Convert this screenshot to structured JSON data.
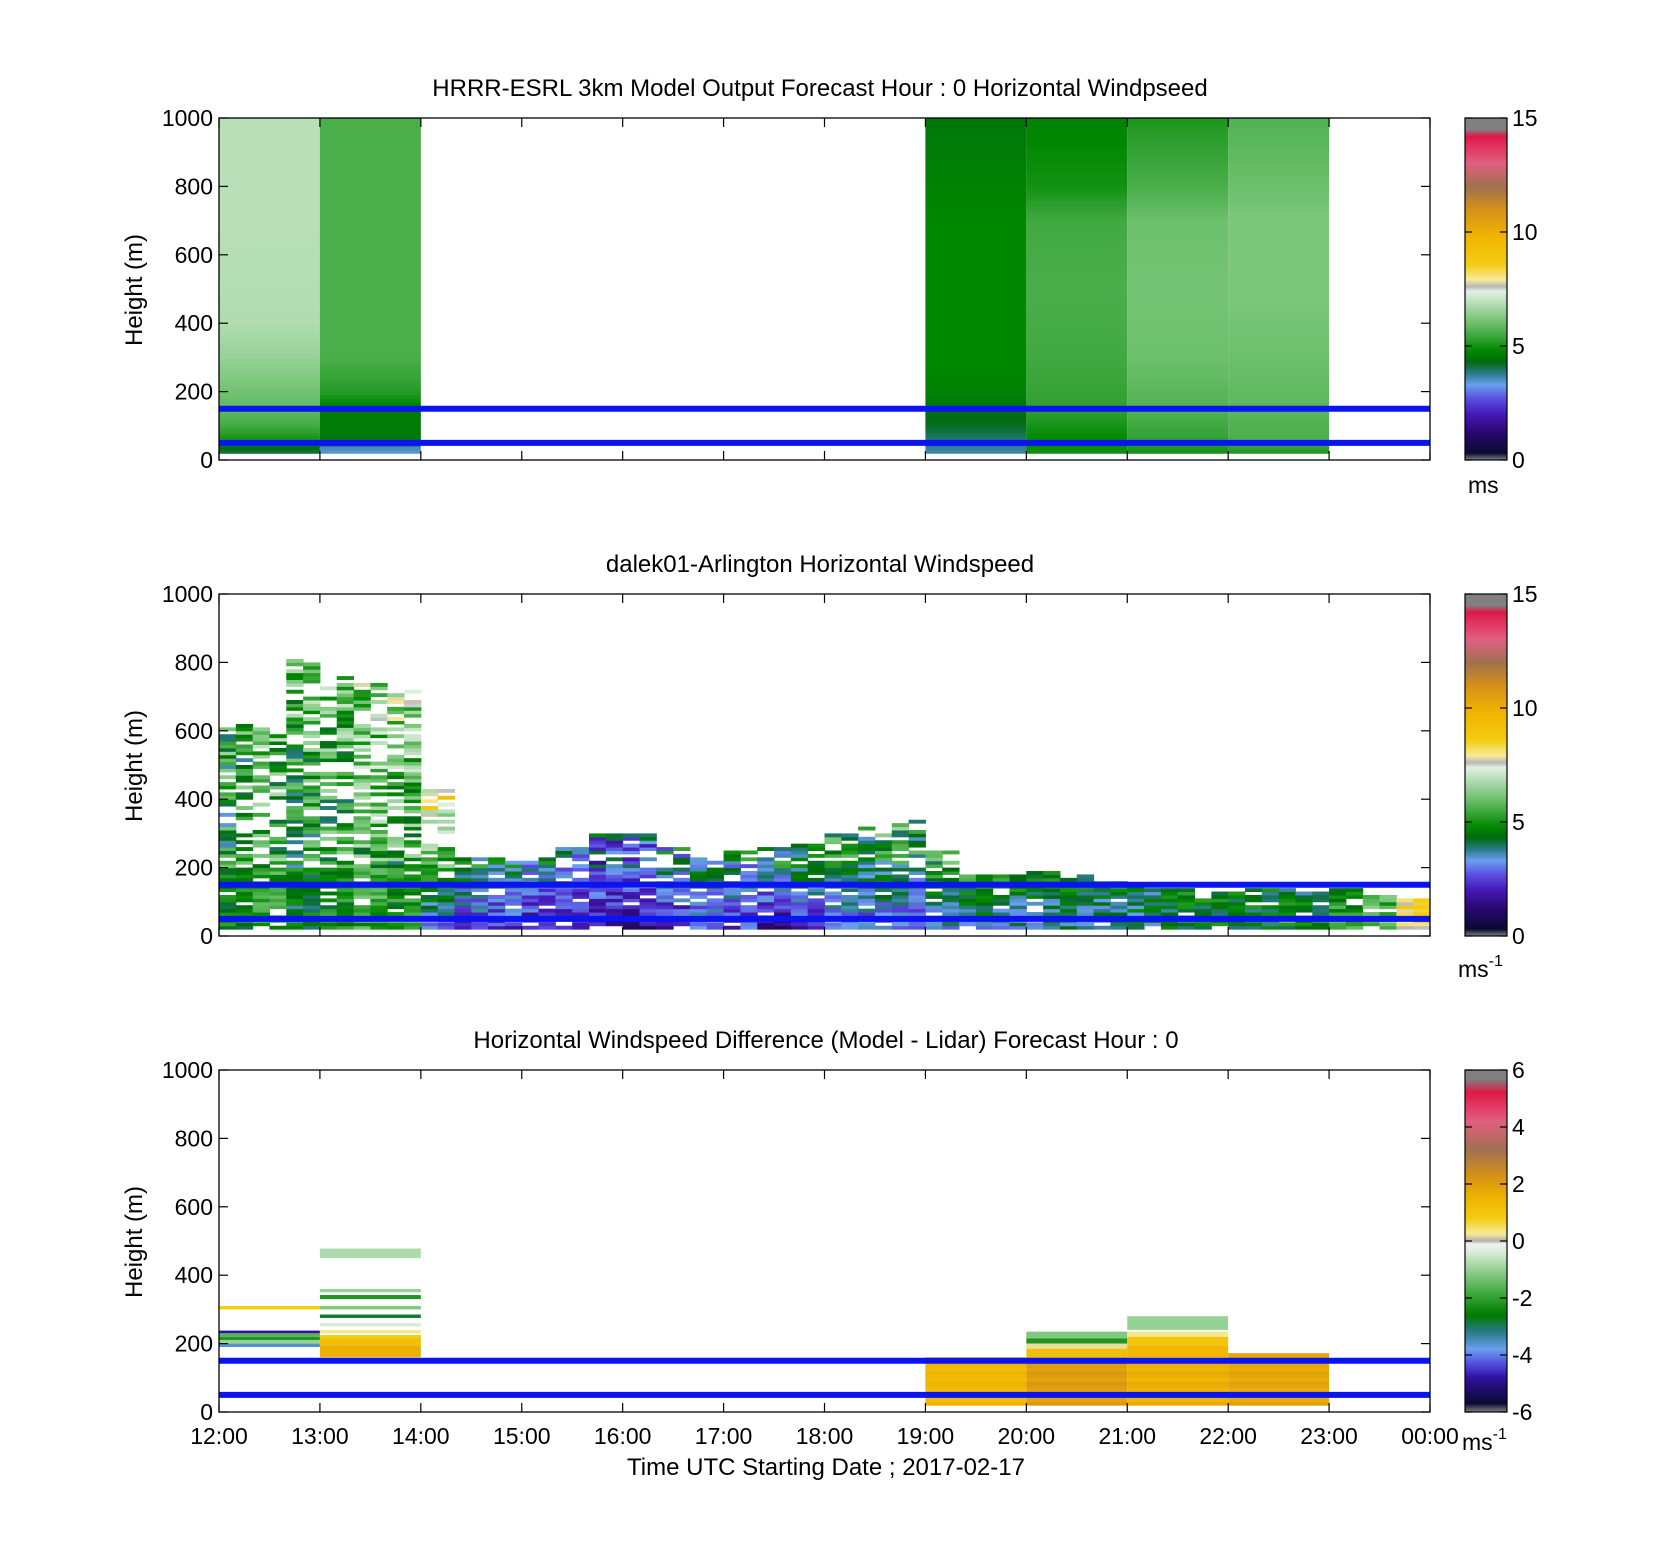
{
  "chart_data": [
    {
      "type": "heatmap",
      "title": "HRRR-ESRL 3km Model Output   Forecast Hour : 0 Horizontal Windpseed",
      "ylabel": "Height (m)",
      "ylim": [
        0,
        1000
      ],
      "yticks": [
        "0",
        "200",
        "400",
        "600",
        "800",
        "1000"
      ],
      "xlim": [
        "12:00",
        "00:00"
      ],
      "colorbar": {
        "min": 0,
        "max": 15,
        "ticks": [
          "0",
          "5",
          "10",
          "15"
        ],
        "unit": "ms",
        "colormap": "windspeed"
      },
      "reference_lines_m": [
        50,
        150
      ],
      "reference_line_color": "#0a14f0",
      "columns": [
        {
          "start": "12:00",
          "end": "13:00",
          "bottom_m": 20,
          "top_m": 1000,
          "profile": [
            [
              20,
              4.0
            ],
            [
              60,
              5.0
            ],
            [
              110,
              5.6
            ],
            [
              160,
              5.9
            ],
            [
              230,
              6.2
            ],
            [
              300,
              6.5
            ],
            [
              400,
              6.8
            ],
            [
              700,
              6.9
            ],
            [
              1000,
              6.9
            ]
          ]
        },
        {
          "start": "13:00",
          "end": "14:00",
          "bottom_m": 20,
          "top_m": 1000,
          "profile": [
            [
              20,
              3.4
            ],
            [
              40,
              3.6
            ],
            [
              60,
              4.5
            ],
            [
              80,
              4.6
            ],
            [
              150,
              4.6
            ],
            [
              200,
              5.2
            ],
            [
              300,
              5.6
            ],
            [
              1000,
              5.6
            ]
          ]
        },
        {
          "start": "19:00",
          "end": "20:00",
          "bottom_m": 20,
          "top_m": 1000,
          "profile": [
            [
              20,
              3.6
            ],
            [
              60,
              3.9
            ],
            [
              100,
              4.2
            ],
            [
              140,
              4.4
            ],
            [
              200,
              4.7
            ],
            [
              300,
              4.8
            ],
            [
              500,
              4.8
            ],
            [
              700,
              4.8
            ],
            [
              900,
              4.6
            ],
            [
              1000,
              4.5
            ]
          ]
        },
        {
          "start": "20:00",
          "end": "21:00",
          "bottom_m": 20,
          "top_m": 1000,
          "profile": [
            [
              20,
              5.0
            ],
            [
              60,
              4.8
            ],
            [
              150,
              5.3
            ],
            [
              300,
              5.5
            ],
            [
              500,
              5.6
            ],
            [
              700,
              5.5
            ],
            [
              800,
              5.0
            ],
            [
              1000,
              4.7
            ]
          ]
        },
        {
          "start": "21:00",
          "end": "22:00",
          "bottom_m": 20,
          "top_m": 1000,
          "profile": [
            [
              20,
              5.0
            ],
            [
              60,
              5.3
            ],
            [
              150,
              5.7
            ],
            [
              300,
              6.0
            ],
            [
              500,
              6.1
            ],
            [
              700,
              6.0
            ],
            [
              800,
              5.6
            ],
            [
              1000,
              5.1
            ]
          ]
        },
        {
          "start": "22:00",
          "end": "23:00",
          "bottom_m": 20,
          "top_m": 1000,
          "profile": [
            [
              20,
              5.1
            ],
            [
              60,
              5.6
            ],
            [
              150,
              5.8
            ],
            [
              300,
              6.0
            ],
            [
              500,
              6.2
            ],
            [
              700,
              6.2
            ],
            [
              800,
              6.0
            ],
            [
              1000,
              5.7
            ]
          ]
        }
      ]
    },
    {
      "type": "heatmap",
      "title": "dalek01-Arlington  Horizontal Windspeed",
      "ylabel": "Height (m)",
      "ylim": [
        0,
        1000
      ],
      "yticks": [
        "0",
        "200",
        "400",
        "600",
        "800",
        "1000"
      ],
      "xlim": [
        "12:00",
        "00:00"
      ],
      "colorbar": {
        "min": 0,
        "max": 15,
        "ticks": [
          "0",
          "5",
          "10",
          "15"
        ],
        "unit": "ms",
        "unit_sup": "-1",
        "colormap": "windspeed"
      },
      "reference_lines_m": [
        50,
        150
      ],
      "reference_line_color": "#0a14f0",
      "sample_interval_min": 10,
      "max_height_m": [
        620,
        610,
        820,
        760,
        740,
        720,
        430,
        230,
        230,
        240,
        260,
        310,
        300,
        260,
        230,
        250,
        260,
        270,
        300,
        320,
        340,
        250,
        180,
        180,
        190,
        180,
        160,
        150,
        140,
        130,
        140,
        140,
        130,
        140,
        120,
        110
      ],
      "surface_speed_ms": [
        4.5,
        5.0,
        4.2,
        4.8,
        5.3,
        4.7,
        3.0,
        2.2,
        2.1,
        2.0,
        1.8,
        1.9,
        1.6,
        2.1,
        2.6,
        2.4,
        1.5,
        2.0,
        2.6,
        2.8,
        2.5,
        3.2,
        3.6,
        3.4,
        3.5,
        3.7,
        3.5,
        3.9,
        4.2,
        4.5,
        4.3,
        4.4,
        4.9,
        5.3,
        6.0,
        8.0
      ],
      "aloft_speed_ms": [
        5.2,
        5.8,
        6.0,
        5.9,
        6.4,
        6.7,
        8.4,
        5.0,
        4.6,
        4.0,
        3.6,
        3.5,
        3.8,
        4.1,
        4.4,
        4.3,
        4.8,
        5.1,
        5.3,
        5.2,
        5.5,
        5.6,
        5.2,
        5.0,
        4.8,
        4.6,
        4.4,
        4.2,
        4.8,
        4.6,
        4.4,
        4.5,
        4.2,
        4.8,
        5.4,
        8.5
      ]
    },
    {
      "type": "heatmap",
      "title": "Horizontal Windspeed Difference (Model - Lidar) Forecast Hour : 0",
      "ylabel": "Height (m)",
      "xlabel": "Time UTC  Starting Date ; 2017-02-17",
      "ylim": [
        0,
        1000
      ],
      "yticks": [
        "0",
        "200",
        "400",
        "600",
        "800",
        "1000"
      ],
      "xticks": [
        "12:00",
        "13:00",
        "14:00",
        "15:00",
        "16:00",
        "17:00",
        "18:00",
        "19:00",
        "20:00",
        "21:00",
        "22:00",
        "23:00",
        "00:00"
      ],
      "colorbar": {
        "min": -6,
        "max": 6,
        "ticks": [
          "-6",
          "-4",
          "-2",
          "0",
          "2",
          "4",
          "6"
        ],
        "unit": "ms",
        "unit_sup": "-1",
        "colormap": "difference"
      },
      "reference_lines_m": [
        50,
        150
      ],
      "reference_line_color": "#0a14f0",
      "cells": [
        {
          "start": "12:00",
          "end": "13:00",
          "rows": [
            [
              300,
              310,
              0.8
            ],
            [
              230,
              238,
              -4.8
            ],
            [
              220,
              230,
              -1.6
            ],
            [
              210,
              220,
              -2.2
            ],
            [
              200,
              210,
              -1.0
            ],
            [
              190,
              200,
              -3.6
            ]
          ]
        },
        {
          "start": "13:00",
          "end": "14:00",
          "rows": [
            [
              450,
              478,
              -0.8
            ],
            [
              350,
              360,
              -1.0
            ],
            [
              330,
              342,
              -2.2
            ],
            [
              300,
              310,
              -1.2
            ],
            [
              275,
              285,
              -2.8
            ],
            [
              250,
              260,
              -0.4
            ],
            [
              230,
              240,
              0.3
            ],
            [
              215,
              225,
              0.8
            ],
            [
              195,
              215,
              1.2
            ],
            [
              160,
              195,
              1.6
            ]
          ]
        },
        {
          "start": "19:00",
          "end": "20:00",
          "rows": [
            [
              20,
              160,
              1.4
            ]
          ]
        },
        {
          "start": "20:00",
          "end": "21:00",
          "rows": [
            [
              215,
              235,
              -1.2
            ],
            [
              200,
              215,
              -2.2
            ],
            [
              185,
              200,
              0.2
            ],
            [
              160,
              185,
              1.2
            ],
            [
              20,
              160,
              2.0
            ]
          ]
        },
        {
          "start": "21:00",
          "end": "22:00",
          "rows": [
            [
              240,
              280,
              -1.0
            ],
            [
              220,
              235,
              0.3
            ],
            [
              195,
              220,
              1.0
            ],
            [
              160,
              195,
              1.4
            ],
            [
              20,
              160,
              1.6
            ]
          ]
        },
        {
          "start": "22:00",
          "end": "23:00",
          "rows": [
            [
              20,
              172,
              1.8
            ]
          ]
        }
      ]
    }
  ]
}
